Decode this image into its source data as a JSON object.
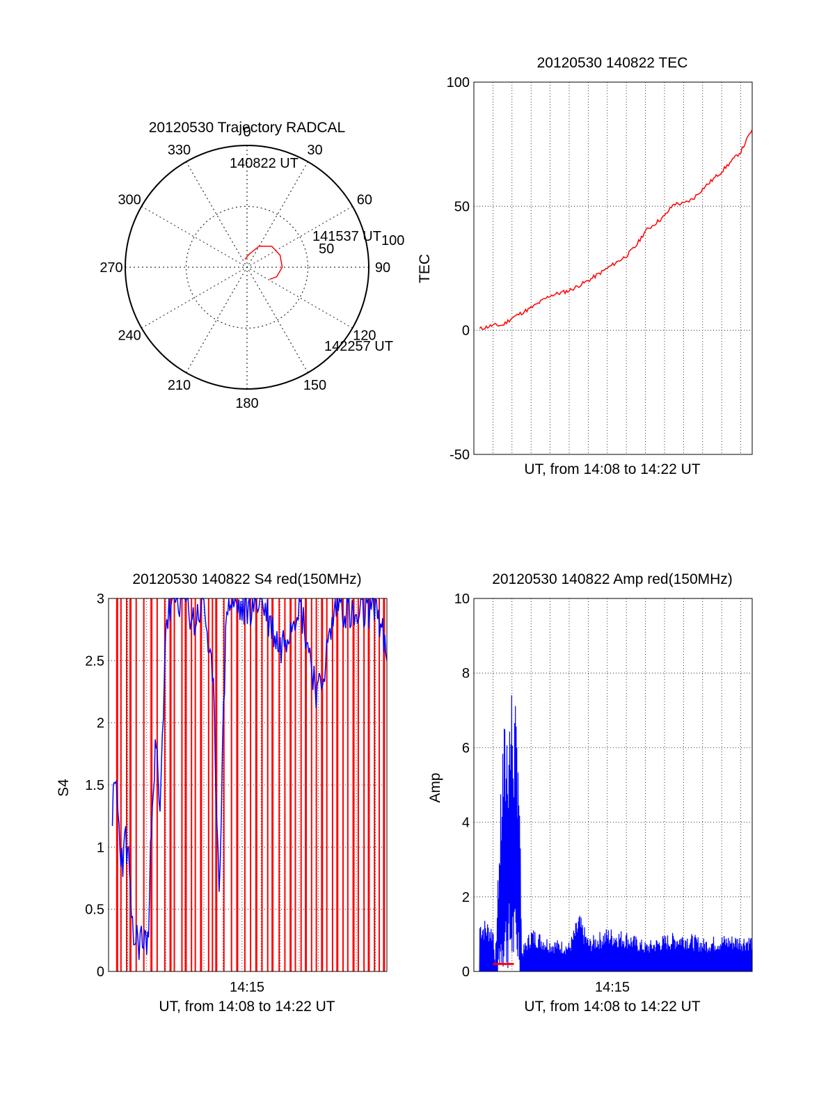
{
  "colors": {
    "red": "#ff0000",
    "blue": "#0000ff",
    "axis": "#000000",
    "grid": "#000000"
  },
  "chart_data": [
    {
      "type": "polar",
      "title": "20120530 Trajectory RADCAL",
      "angle_ticks": [
        "0",
        "30",
        "60",
        "90",
        "120",
        "150",
        "180",
        "210",
        "240",
        "270",
        "300",
        "330"
      ],
      "radius_labels": [
        "50",
        "100"
      ],
      "grid": "dotted",
      "series": [
        {
          "color": "#ff0000",
          "points": [
            [
              345,
              84
            ],
            [
              10,
              80
            ],
            [
              30,
              72
            ],
            [
              50,
              66
            ],
            [
              70,
              64
            ],
            [
              90,
              64
            ],
            [
              108,
              67
            ],
            [
              118,
              71
            ]
          ]
        }
      ],
      "annotations": [
        {
          "text": "140822 UT",
          "az": 345,
          "el": 84
        },
        {
          "text": "141537 UT",
          "az": 60,
          "el": 60
        },
        {
          "text": "142257 UT",
          "az": 118,
          "el": 71
        }
      ]
    },
    {
      "type": "line",
      "title": "20120530 140822 TEC",
      "xlabel": "UT, from 14:08 to 14:22 UT",
      "ylabel": "TEC",
      "ylim": [
        -50,
        100
      ],
      "yticks": [
        "-50",
        "0",
        "50",
        "100"
      ],
      "xlim_min": [
        0,
        14.6
      ],
      "grid": true,
      "series": [
        {
          "color": "#ff0000",
          "x": [
            0.3,
            1.0,
            1.5,
            2.0,
            3.0,
            4.0,
            5.0,
            6.0,
            7.0,
            8.0,
            8.5,
            9.0,
            9.5,
            10.0,
            10.5,
            11.0,
            11.5,
            12.0,
            13.0,
            14.0,
            14.6
          ],
          "values": [
            0.5,
            2,
            2,
            5,
            9,
            14,
            16,
            20,
            25,
            30,
            34,
            40,
            43,
            46,
            51,
            51,
            53,
            57,
            64,
            72,
            81
          ]
        }
      ]
    },
    {
      "type": "line",
      "title": "20120530 140822 S4 red(150MHz)",
      "xlabel": "UT, from 14:08 to 14:22 UT",
      "ylabel": "S4",
      "ylim": [
        0,
        3
      ],
      "yticks": [
        "0",
        "0.5",
        "1",
        "1.5",
        "2",
        "2.5",
        "3"
      ],
      "xticks": [
        {
          "x": 7,
          "label": "14:15"
        }
      ],
      "xlim_min": [
        0,
        14.6
      ],
      "grid": true,
      "series": [
        {
          "name": "blue",
          "color": "#0000ff",
          "x": [
            0.2,
            0.4,
            0.6,
            0.8,
            0.9,
            1.0,
            1.1,
            1.2,
            1.6,
            1.9,
            2.1,
            2.3,
            2.5,
            2.7,
            3.0,
            3.5,
            4.0,
            4.5,
            5.0,
            5.5,
            5.8,
            6.2,
            7.0,
            8.0,
            9.0,
            10.0,
            11.0,
            12.0,
            13.0,
            14.0,
            14.6
          ],
          "values": [
            1.3,
            1.5,
            1.0,
            0.9,
            1.1,
            0.9,
            0.85,
            0.28,
            0.25,
            0.25,
            0.28,
            1.5,
            1.8,
            1.2,
            2.8,
            3.0,
            3.0,
            2.8,
            3.0,
            2.2,
            0.7,
            3.0,
            2.9,
            3.0,
            2.6,
            3.0,
            2.2,
            3.0,
            2.8,
            3.0,
            2.5
          ]
        }
      ],
      "red_dropouts_x": [
        0.45,
        0.65,
        0.95,
        1.15,
        1.45,
        1.85,
        2.25,
        2.55,
        2.95,
        3.25,
        3.45,
        3.85,
        4.05,
        4.35,
        4.55,
        4.85,
        5.25,
        5.45,
        5.65,
        6.05,
        6.45,
        6.75,
        7.15,
        7.45,
        7.75,
        8.05,
        8.35,
        8.6,
        8.95,
        9.25,
        9.55,
        9.8,
        10.1,
        10.35,
        10.65,
        10.9,
        11.2,
        11.45,
        11.75,
        12.0,
        12.3,
        12.55,
        12.85,
        13.1,
        13.4,
        13.65,
        13.95,
        14.2,
        14.45
      ]
    },
    {
      "type": "line",
      "title": "20120530 140822 Amp red(150MHz)",
      "xlabel": "UT, from 14:08 to 14:22 UT",
      "ylabel": "Amp",
      "ylim": [
        0,
        10
      ],
      "yticks": [
        "0",
        "2",
        "4",
        "6",
        "8",
        "10"
      ],
      "xticks": [
        {
          "x": 7,
          "label": "14:15"
        }
      ],
      "xlim_min": [
        0,
        14.6
      ],
      "grid": true,
      "series": [
        {
          "name": "blue",
          "color": "#0000ff",
          "x": [
            0.3,
            0.7,
            1.0,
            1.1,
            1.5,
            2.0,
            2.2,
            2.3,
            2.5,
            3.0,
            4.0,
            5.0,
            5.5,
            6.0,
            7.0,
            8.0,
            9.0,
            10.0,
            11.0,
            12.0,
            13.0,
            14.0,
            14.6
          ],
          "values": [
            1.5,
            1.4,
            1.3,
            0.2,
            6.5,
            8.1,
            7.0,
            7.5,
            0.6,
            1.2,
            0.9,
            0.8,
            1.6,
            0.9,
            1.2,
            1.1,
            0.8,
            1.0,
            1.1,
            0.9,
            1.0,
            1.0,
            1.0
          ]
        },
        {
          "name": "red",
          "color": "#ff0000",
          "x": [
            1.0,
            2.1
          ],
          "values": [
            0.2,
            0.2
          ]
        }
      ]
    }
  ]
}
